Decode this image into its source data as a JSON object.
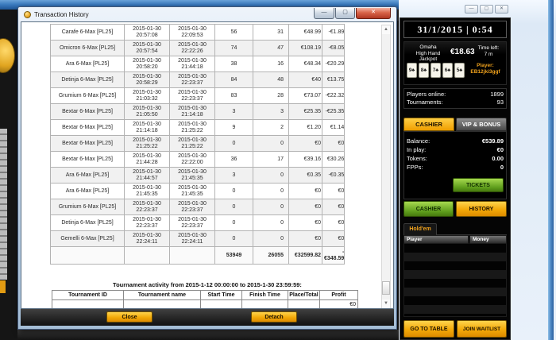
{
  "colors": {
    "accent_orange": "#f3a908",
    "accent_green": "#6aa821",
    "titlebar_blue": "#3c7cc0",
    "lobby_black": "#050505"
  },
  "transaction_window": {
    "title": "Transaction History",
    "table": {
      "rows": [
        {
          "name": "Carafe 6-Max [PL25]",
          "start": "2015-01-30 20:57:08",
          "finish": "2015-01-30 22:09:53",
          "hands": "56",
          "won": "31",
          "stake": "€48.99",
          "profit": "-€1.89"
        },
        {
          "name": "Omicron 6-Max [PL25]",
          "start": "2015-01-30 20:57:54",
          "finish": "2015-01-30 22:22:26",
          "hands": "74",
          "won": "47",
          "stake": "€108.19",
          "profit": "-€8.05"
        },
        {
          "name": "Ara 6-Max [PL25]",
          "start": "2015-01-30 20:58:20",
          "finish": "2015-01-30 21:44:18",
          "hands": "38",
          "won": "16",
          "stake": "€48.34",
          "profit": "-€20.29"
        },
        {
          "name": "Detinja 6-Max [PL25]",
          "start": "2015-01-30 20:58:29",
          "finish": "2015-01-30 22:23:37",
          "hands": "84",
          "won": "48",
          "stake": "€40",
          "profit": "€13.75"
        },
        {
          "name": "Grumium 6-Max [PL25]",
          "start": "2015-01-30 21:03:32",
          "finish": "2015-01-30 22:23:37",
          "hands": "83",
          "won": "28",
          "stake": "€73.07",
          "profit": "-€22.32"
        },
        {
          "name": "Bextar 6-Max [PL25]",
          "start": "2015-01-30 21:05:50",
          "finish": "2015-01-30 21:14:18",
          "hands": "3",
          "won": "3",
          "stake": "€25.35",
          "profit": "-€25.35"
        },
        {
          "name": "Bextar 6-Max [PL25]",
          "start": "2015-01-30 21:14:18",
          "finish": "2015-01-30 21:25:22",
          "hands": "9",
          "won": "2",
          "stake": "€1.20",
          "profit": "€1.14"
        },
        {
          "name": "Bextar 6-Max [PL25]",
          "start": "2015-01-30 21:25:22",
          "finish": "2015-01-30 21:25:22",
          "hands": "0",
          "won": "0",
          "stake": "€0",
          "profit": "€0"
        },
        {
          "name": "Bextar 6-Max [PL25]",
          "start": "2015-01-30 21:44:28",
          "finish": "2015-01-30 22:22:00",
          "hands": "36",
          "won": "17",
          "stake": "€39.16",
          "profit": "€30.26"
        },
        {
          "name": "Ara 6-Max [PL25]",
          "start": "2015-01-30 21:44:57",
          "finish": "2015-01-30 21:45:35",
          "hands": "3",
          "won": "0",
          "stake": "€0.35",
          "profit": "-€0.35"
        },
        {
          "name": "Ara 6-Max [PL25]",
          "start": "2015-01-30 21:45:35",
          "finish": "2015-01-30 21:45:35",
          "hands": "0",
          "won": "0",
          "stake": "€0",
          "profit": "€0"
        },
        {
          "name": "Grumium 6-Max [PL25]",
          "start": "2015-01-30 22:23:37",
          "finish": "2015-01-30 22:23:37",
          "hands": "0",
          "won": "0",
          "stake": "€0",
          "profit": "€0"
        },
        {
          "name": "Detinja 6-Max [PL25]",
          "start": "2015-01-30 22:23:37",
          "finish": "2015-01-30 22:23:37",
          "hands": "0",
          "won": "0",
          "stake": "€0",
          "profit": "€0"
        },
        {
          "name": "Gemelli 6-Max [PL25]",
          "start": "2015-01-30 22:24:11",
          "finish": "2015-01-30 22:24:11",
          "hands": "0",
          "won": "0",
          "stake": "€0",
          "profit": "€0"
        }
      ],
      "totals": {
        "hands": "53949",
        "won": "26055",
        "stake": "€32599.82",
        "profit_sign": "-",
        "profit": "€348.59"
      }
    },
    "activity": {
      "title": "Tournament activity from 2015-1-12 00:00:00 to 2015-1-30 23:59:59:",
      "headers": [
        "Tournament ID",
        "Tournament name",
        "Start Time",
        "Finish Time",
        "Place/Total",
        "Profit"
      ],
      "row_profit": "€0"
    },
    "buttons": {
      "close": "Close",
      "detach": "Detach"
    },
    "controls": {
      "minimize": "—",
      "maximize": "▢",
      "close": "✕"
    }
  },
  "sidebar": {
    "datetime": "31/1/2015 | 0:54",
    "controls": {
      "minimize": "—",
      "maximize": "▢",
      "close": "✕"
    },
    "jackpot": {
      "name_lines": [
        "Omaha",
        "High Hand",
        "Jackpot"
      ],
      "amount": "€18.63",
      "time_left_label": "Time left:",
      "time_left_value": "7 m",
      "player_label": "Player:",
      "player_name": "EB12jki3ggf",
      "cards": [
        "9♣",
        "8♣",
        "7♣",
        "6♣",
        "5♣"
      ]
    },
    "stats": [
      {
        "label": "Players online:",
        "value": "1899"
      },
      {
        "label": "Tournaments:",
        "value": "93"
      }
    ],
    "tabs": [
      {
        "label": "CASHIER"
      },
      {
        "label": "VIP & BONUS"
      }
    ],
    "account": [
      {
        "label": "Balance:",
        "value": "€539.89"
      },
      {
        "label": "In play:",
        "value": "€0"
      },
      {
        "label": "Tokens:",
        "value": "0.00"
      },
      {
        "label": "FPPs:",
        "value": "0"
      }
    ],
    "tickets_button": "TICKETS",
    "cashier_button": "CASHIER",
    "history_button": "HISTORY",
    "game_tab": "Hold'em",
    "list_headers": [
      "Player",
      "Money"
    ],
    "go_to_table_button": "GO TO TABLE",
    "join_waitlist_button": "JOIN WAITLIST"
  }
}
